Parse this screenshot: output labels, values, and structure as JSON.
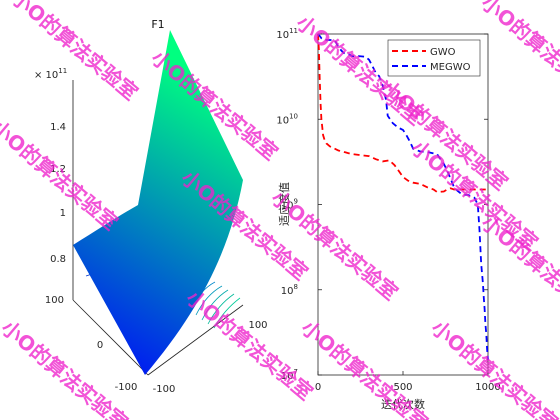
{
  "chart_data": [
    {
      "type": "surface",
      "title": "F1",
      "z_multiplier_label": "× 10",
      "z_multiplier_exponent": "11",
      "x_ticks": [
        "-100",
        "0",
        "100"
      ],
      "y_ticks": [
        "-100",
        "0",
        "100"
      ],
      "z_ticks": [
        "0.8",
        "1",
        "1.2",
        "1.4"
      ],
      "z_values": [
        0.8,
        1.0,
        1.2,
        1.4
      ],
      "colormap": [
        "#0000ff",
        "#00ff80"
      ]
    },
    {
      "type": "line",
      "title": "",
      "xlabel": "迭代次数",
      "ylabel": "适应度值",
      "xlim": [
        0,
        1000
      ],
      "ylim": [
        10000000.0,
        100000000000.0
      ],
      "yscale": "log",
      "grid": false,
      "legend_position": "top-right",
      "x_ticks": [
        "0",
        "500",
        "1000"
      ],
      "y_tick_base": "10",
      "y_tick_exponents": [
        "7",
        "8",
        "9",
        "10",
        "11"
      ],
      "series": [
        {
          "name": "GWO",
          "color": "#ff0000",
          "x": [
            0,
            5,
            10,
            15,
            20,
            25,
            30,
            40,
            50,
            60,
            70,
            80,
            90,
            100,
            120,
            140,
            160,
            180,
            200,
            250,
            300,
            340,
            380,
            420,
            450,
            480,
            500,
            530,
            560,
            600,
            640,
            680,
            700,
            740,
            760,
            780,
            800,
            840,
            880,
            920,
            960,
            1000
          ],
          "y": [
            100000000000.0,
            65000000000.0,
            30000000000.0,
            15000000000.0,
            10000000000.0,
            8000000000.0,
            6500000000.0,
            5600000000.0,
            5200000000.0,
            5000000000.0,
            4800000000.0,
            4700000000.0,
            4600000000.0,
            4500000000.0,
            4300000000.0,
            4200000000.0,
            4100000000.0,
            4000000000.0,
            3900000000.0,
            3800000000.0,
            3700000000.0,
            3400000000.0,
            3200000000.0,
            3300000000.0,
            2900000000.0,
            2400000000.0,
            2100000000.0,
            1900000000.0,
            1800000000.0,
            1750000000.0,
            1600000000.0,
            1500000000.0,
            1400000000.0,
            1420000000.0,
            1500000000.0,
            1550000000.0,
            1500000000.0,
            1500000000.0,
            1500000000.0,
            1500000000.0,
            1500000000.0,
            1500000000.0
          ]
        },
        {
          "name": "MEGWO",
          "color": "#0000ff",
          "x": [
            0,
            10,
            20,
            30,
            50,
            80,
            100,
            120,
            150,
            180,
            200,
            240,
            280,
            300,
            320,
            340,
            360,
            380,
            400,
            410,
            440,
            470,
            500,
            520,
            540,
            560,
            600,
            650,
            700,
            740,
            760,
            780,
            800,
            820,
            840,
            860,
            880,
            900,
            920,
            940,
            950,
            960,
            970,
            975,
            980,
            985,
            990,
            995,
            1000
          ],
          "y": [
            100000000000.0,
            95000000000.0,
            89000000000.0,
            86000000000.0,
            85000000000.0,
            85000000000.0,
            84000000000.0,
            70000000000.0,
            60000000000.0,
            58000000000.0,
            55000000000.0,
            55000000000.0,
            54000000000.0,
            50000000000.0,
            42000000000.0,
            35000000000.0,
            32000000000.0,
            25000000000.0,
            17000000000.0,
            11000000000.0,
            9000000000.0,
            8000000000.0,
            7500000000.0,
            6500000000.0,
            5500000000.0,
            4500000000.0,
            4200000000.0,
            4100000000.0,
            3900000000.0,
            3000000000.0,
            2500000000.0,
            2000000000.0,
            1600000000.0,
            1450000000.0,
            1350000000.0,
            1300000000.0,
            1300000000.0,
            1250000000.0,
            1200000000.0,
            1000000000.0,
            500000000.0,
            200000000.0,
            120000000.0,
            80000000.0,
            60000000.0,
            40000000.0,
            30000000.0,
            20000000.0,
            15000000.0
          ]
        }
      ]
    }
  ],
  "watermark": "小O的算法实验室"
}
